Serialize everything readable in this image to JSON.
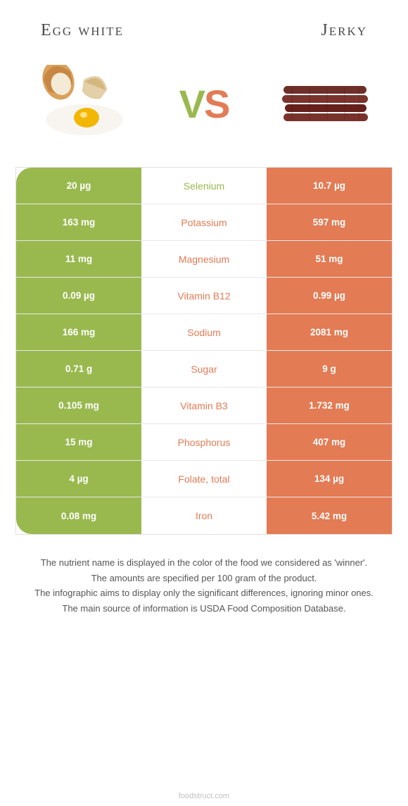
{
  "colors": {
    "left": "#99b94f",
    "right": "#e37b54",
    "bg": "#ffffff"
  },
  "header": {
    "left_title": "Egg white",
    "right_title": "Jerky",
    "vs_v": "V",
    "vs_s": "S"
  },
  "rows": [
    {
      "nutrient": "Selenium",
      "left": "20 µg",
      "right": "10.7 µg",
      "winner": "left"
    },
    {
      "nutrient": "Potassium",
      "left": "163 mg",
      "right": "597 mg",
      "winner": "right"
    },
    {
      "nutrient": "Magnesium",
      "left": "11 mg",
      "right": "51 mg",
      "winner": "right"
    },
    {
      "nutrient": "Vitamin B12",
      "left": "0.09 µg",
      "right": "0.99 µg",
      "winner": "right"
    },
    {
      "nutrient": "Sodium",
      "left": "166 mg",
      "right": "2081 mg",
      "winner": "right"
    },
    {
      "nutrient": "Sugar",
      "left": "0.71 g",
      "right": "9 g",
      "winner": "right"
    },
    {
      "nutrient": "Vitamin B3",
      "left": "0.105 mg",
      "right": "1.732 mg",
      "winner": "right"
    },
    {
      "nutrient": "Phosphorus",
      "left": "15 mg",
      "right": "407 mg",
      "winner": "right"
    },
    {
      "nutrient": "Folate, total",
      "left": "4 µg",
      "right": "134 µg",
      "winner": "right"
    },
    {
      "nutrient": "Iron",
      "left": "0.08 mg",
      "right": "5.42 mg",
      "winner": "right"
    }
  ],
  "footer": {
    "line1": "The nutrient name is displayed in the color of the food we considered as 'winner'.",
    "line2": "The amounts are specified per 100 gram of the product.",
    "line3": "The infographic aims to display only the significant differences, ignoring minor ones.",
    "line4": "The main source of information is USDA Food Composition Database."
  },
  "credit": "foodstruct.com"
}
